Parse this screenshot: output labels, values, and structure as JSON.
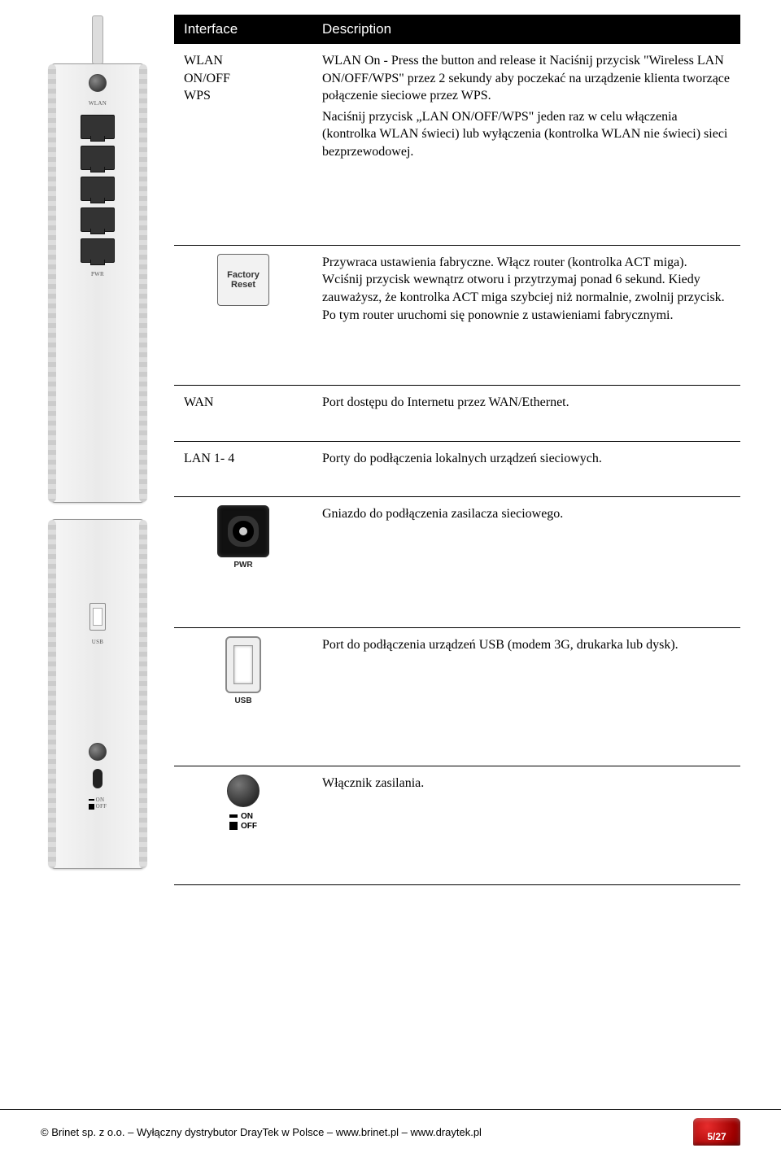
{
  "header": {
    "col1": "Interface",
    "col2": "Description"
  },
  "rows": [
    {
      "iface": "WLAN\nON/OFF\nWPS",
      "iface_type": "text",
      "desc": "WLAN On - Press the button and release it Naciśnij przycisk \"Wireless LAN ON/OFF/WPS\" przez 2 sekundy aby poczekać na urządzenie klienta tworzące połączenie sieciowe przez WPS.\nNaciśnij przycisk „LAN ON/OFF/WPS\" jeden raz w celu włączenia (kontrolka WLAN świeci) lub wyłączenia (kontrolka WLAN nie świeci) sieci bezprzewodowej."
    },
    {
      "iface_icon": "factory-reset",
      "iface_caption": "Factory\nReset",
      "iface_type": "icon",
      "desc": "Przywraca ustawienia fabryczne. Włącz router (kontrolka ACT miga). Wciśnij przycisk wewnątrz otworu i przytrzymaj ponad 6 sekund. Kiedy zauważysz, że kontrolka ACT miga szybciej niż normalnie, zwolnij przycisk. Po tym router uruchomi się ponownie z ustawieniami fabrycznymi."
    },
    {
      "iface": "WAN",
      "iface_type": "text",
      "desc": "Port dostępu do Internetu przez WAN/Ethernet."
    },
    {
      "iface": "LAN 1- 4",
      "iface_type": "text",
      "desc": "Porty do podłączenia lokalnych urządzeń sieciowych."
    },
    {
      "iface_icon": "pwr-jack",
      "iface_caption": "PWR",
      "iface_type": "icon",
      "desc": "Gniazdo do podłączenia zasilacza sieciowego."
    },
    {
      "iface_icon": "usb",
      "iface_caption": "USB",
      "iface_type": "icon",
      "desc": "Port do podłączenia urządzeń USB (modem 3G, drukarka lub dysk)."
    },
    {
      "iface_icon": "onoff",
      "on_label": "ON",
      "off_label": "OFF",
      "iface_type": "icon",
      "desc": "Włącznik zasilania."
    }
  ],
  "footer": {
    "text": "© Brinet sp. z o.o. – Wyłączny dystrybutor DrayTek w Polsce – www.brinet.pl – www.draytek.pl",
    "page": "5/27"
  },
  "colors": {
    "header_bg": "#000000",
    "header_fg": "#ffffff",
    "badge_bg": "#c81818",
    "rule": "#000000"
  },
  "device_labels": {
    "usb": "USB",
    "on": "ON",
    "off": "OFF",
    "pwr": "PWR"
  }
}
